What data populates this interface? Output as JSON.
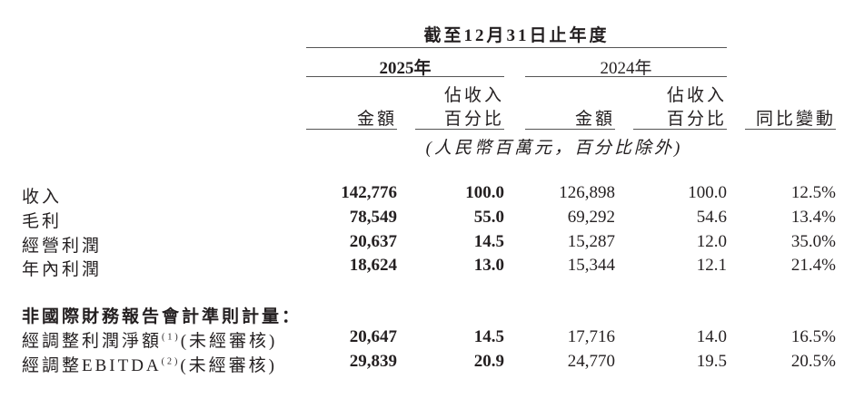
{
  "header": {
    "period": "截至12月31日止年度",
    "year_current": "2025年",
    "year_prior": "2024年",
    "col_amount": "金額",
    "col_pct_line1": "佔收入",
    "col_pct_line2": "百分比",
    "col_yoy": "同比變動",
    "unit_note": "(人民幣百萬元，百分比除外)"
  },
  "rows": [
    {
      "label": "收入",
      "amt_2025": "142,776",
      "pct_2025": "100.0",
      "amt_2024": "126,898",
      "pct_2024": "100.0",
      "yoy": "12.5%"
    },
    {
      "label": "毛利",
      "amt_2025": "78,549",
      "pct_2025": "55.0",
      "amt_2024": "69,292",
      "pct_2024": "54.6",
      "yoy": "13.4%"
    },
    {
      "label": "經營利潤",
      "amt_2025": "20,637",
      "pct_2025": "14.5",
      "amt_2024": "15,287",
      "pct_2024": "12.0",
      "yoy": "35.0%"
    },
    {
      "label": "年內利潤",
      "amt_2025": "18,624",
      "pct_2025": "13.0",
      "amt_2024": "15,344",
      "pct_2024": "12.1",
      "yoy": "21.4%"
    }
  ],
  "non_ifrs": {
    "heading": "非國際財務報告會計準則計量：",
    "rows": [
      {
        "label": "經調整利潤淨額",
        "note": "(1)",
        "suffix": "(未經審核)",
        "amt_2025": "20,647",
        "pct_2025": "14.5",
        "amt_2024": "17,716",
        "pct_2024": "14.0",
        "yoy": "16.5%"
      },
      {
        "label": "經調整EBITDA",
        "note": "(2)",
        "suffix": "(未經審核)",
        "amt_2025": "29,839",
        "pct_2025": "20.9",
        "amt_2024": "24,770",
        "pct_2024": "19.5",
        "yoy": "20.5%"
      }
    ]
  }
}
